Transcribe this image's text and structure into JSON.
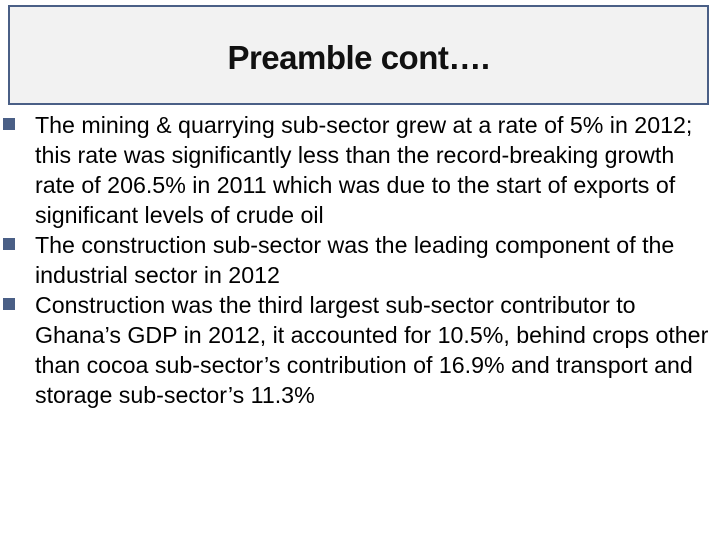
{
  "slide": {
    "title": "Preamble cont….",
    "bullets": [
      "The mining & quarrying sub-sector grew at a rate of 5% in 2012; this rate was significantly less than the record-breaking growth rate of 206.5%  in 2011 which was due to the start of exports of significant levels of crude oil",
      "The construction sub-sector was the leading component of the industrial sector in 2012",
      "Construction was the third largest sub-sector contributor to Ghana’s GDP in 2012, it accounted for 10.5%, behind crops other than cocoa sub-sector’s contribution of 16.9% and transport and storage sub-sector’s 11.3%"
    ]
  },
  "colors": {
    "accent": "#4a5f86",
    "title_background": "#f2f2f2"
  }
}
